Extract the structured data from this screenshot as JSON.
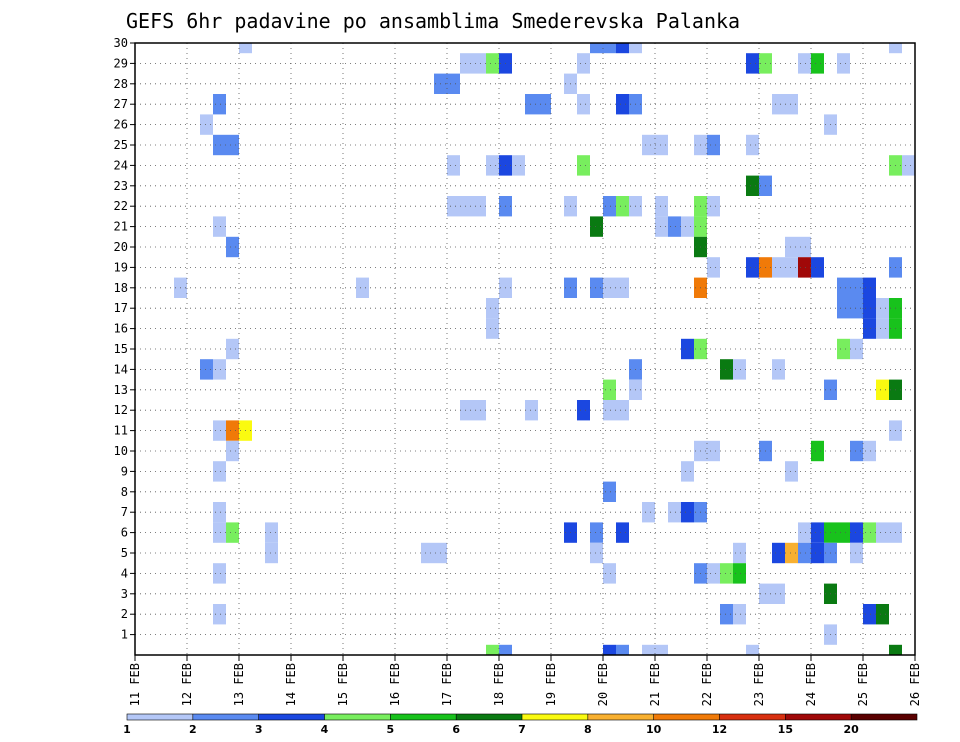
{
  "chart_data": {
    "type": "heatmap",
    "title": "GEFS 6hr padavine po ansamblima Smederevska Palanka",
    "x_tick_labels": [
      "11 FEB",
      "12 FEB",
      "13 FEB",
      "14 FEB",
      "15 FEB",
      "16 FEB",
      "17 FEB",
      "18 FEB",
      "19 FEB",
      "20 FEB",
      "21 FEB",
      "22 FEB",
      "23 FEB",
      "24 FEB",
      "25 FEB",
      "26 FEB"
    ],
    "y_tick_labels": [
      "1",
      "2",
      "3",
      "4",
      "5",
      "6",
      "7",
      "8",
      "9",
      "10",
      "11",
      "12",
      "13",
      "14",
      "15",
      "16",
      "17",
      "18",
      "19",
      "20",
      "21",
      "22",
      "23",
      "24",
      "25",
      "26",
      "27",
      "28",
      "29",
      "30"
    ],
    "x_range_days": [
      11,
      26
    ],
    "y_range_members": [
      0,
      30
    ],
    "grid": true,
    "colorbar": {
      "tick_labels": [
        "1",
        "2",
        "3",
        "4",
        "5",
        "6",
        "7",
        "8",
        "10",
        "12",
        "15",
        "20"
      ],
      "colors": [
        "#b4c7f7",
        "#5a8af0",
        "#1b47e0",
        "#78ee5e",
        "#18c21c",
        "#0a7a12",
        "#fafa10",
        "#f8b030",
        "#f07a08",
        "#d83010",
        "#a00808",
        "#5a0000"
      ]
    },
    "cells": [
      {
        "member": 30,
        "time": "13 FEB 06",
        "level": 1
      },
      {
        "member": 30,
        "time": "20 FEB 00",
        "level": 2
      },
      {
        "member": 30,
        "time": "20 FEB 06",
        "level": 2
      },
      {
        "member": 30,
        "time": "20 FEB 12",
        "level": 3
      },
      {
        "member": 30,
        "time": "20 FEB 18",
        "level": 1
      },
      {
        "member": 30,
        "time": "25 FEB 18",
        "level": 1
      },
      {
        "member": 29,
        "time": "17 FEB 12",
        "level": 1
      },
      {
        "member": 29,
        "time": "17 FEB 18",
        "level": 1
      },
      {
        "member": 29,
        "time": "18 FEB 00",
        "level": 4
      },
      {
        "member": 29,
        "time": "18 FEB 06",
        "level": 3
      },
      {
        "member": 29,
        "time": "19 FEB 18",
        "level": 1
      },
      {
        "member": 29,
        "time": "23 FEB 00",
        "level": 3
      },
      {
        "member": 29,
        "time": "23 FEB 06",
        "level": 4
      },
      {
        "member": 29,
        "time": "24 FEB 00",
        "level": 1
      },
      {
        "member": 29,
        "time": "24 FEB 06",
        "level": 5
      },
      {
        "member": 29,
        "time": "24 FEB 18",
        "level": 1
      },
      {
        "member": 28,
        "time": "17 FEB 00",
        "level": 2
      },
      {
        "member": 28,
        "time": "17 FEB 06",
        "level": 2
      },
      {
        "member": 28,
        "time": "19 FEB 12",
        "level": 1
      },
      {
        "member": 27,
        "time": "12 FEB 18",
        "level": 2
      },
      {
        "member": 27,
        "time": "18 FEB 18",
        "level": 2
      },
      {
        "member": 27,
        "time": "19 FEB 00",
        "level": 2
      },
      {
        "member": 27,
        "time": "19 FEB 18",
        "level": 1
      },
      {
        "member": 27,
        "time": "20 FEB 12",
        "level": 3
      },
      {
        "member": 27,
        "time": "20 FEB 18",
        "level": 2
      },
      {
        "member": 27,
        "time": "23 FEB 12",
        "level": 1
      },
      {
        "member": 27,
        "time": "23 FEB 18",
        "level": 1
      },
      {
        "member": 26,
        "time": "12 FEB 12",
        "level": 1
      },
      {
        "member": 26,
        "time": "24 FEB 12",
        "level": 1
      },
      {
        "member": 25,
        "time": "12 FEB 18",
        "level": 2
      },
      {
        "member": 25,
        "time": "13 FEB 00",
        "level": 2
      },
      {
        "member": 25,
        "time": "21 FEB 00",
        "level": 1
      },
      {
        "member": 25,
        "time": "21 FEB 06",
        "level": 1
      },
      {
        "member": 25,
        "time": "22 FEB 00",
        "level": 1
      },
      {
        "member": 25,
        "time": "22 FEB 06",
        "level": 2
      },
      {
        "member": 25,
        "time": "23 FEB 00",
        "level": 1
      },
      {
        "member": 24,
        "time": "17 FEB 06",
        "level": 1
      },
      {
        "member": 24,
        "time": "18 FEB 00",
        "level": 1
      },
      {
        "member": 24,
        "time": "18 FEB 06",
        "level": 3
      },
      {
        "member": 24,
        "time": "18 FEB 12",
        "level": 1
      },
      {
        "member": 24,
        "time": "19 FEB 18",
        "level": 4
      },
      {
        "member": 24,
        "time": "25 FEB 18",
        "level": 4
      },
      {
        "member": 24,
        "time": "26 FEB 00",
        "level": 1
      },
      {
        "member": 23,
        "time": "23 FEB 00",
        "level": 6
      },
      {
        "member": 23,
        "time": "23 FEB 06",
        "level": 2
      },
      {
        "member": 22,
        "time": "17 FEB 06",
        "level": 1
      },
      {
        "member": 22,
        "time": "17 FEB 12",
        "level": 1
      },
      {
        "member": 22,
        "time": "17 FEB 18",
        "level": 1
      },
      {
        "member": 22,
        "time": "18 FEB 06",
        "level": 2
      },
      {
        "member": 22,
        "time": "19 FEB 12",
        "level": 1
      },
      {
        "member": 22,
        "time": "20 FEB 06",
        "level": 2
      },
      {
        "member": 22,
        "time": "20 FEB 12",
        "level": 4
      },
      {
        "member": 22,
        "time": "20 FEB 18",
        "level": 1
      },
      {
        "member": 22,
        "time": "21 FEB 06",
        "level": 1
      },
      {
        "member": 22,
        "time": "22 FEB 00",
        "level": 4
      },
      {
        "member": 22,
        "time": "22 FEB 06",
        "level": 1
      },
      {
        "member": 21,
        "time": "12 FEB 18",
        "level": 1
      },
      {
        "member": 21,
        "time": "20 FEB 00",
        "level": 6
      },
      {
        "member": 21,
        "time": "21 FEB 06",
        "level": 1
      },
      {
        "member": 21,
        "time": "21 FEB 12",
        "level": 2
      },
      {
        "member": 21,
        "time": "21 FEB 18",
        "level": 1
      },
      {
        "member": 21,
        "time": "22 FEB 00",
        "level": 4
      },
      {
        "member": 20,
        "time": "13 FEB 00",
        "level": 2
      },
      {
        "member": 20,
        "time": "22 FEB 00",
        "level": 6
      },
      {
        "member": 20,
        "time": "23 FEB 18",
        "level": 1
      },
      {
        "member": 20,
        "time": "24 FEB 00",
        "level": 1
      },
      {
        "member": 19,
        "time": "22 FEB 06",
        "level": 1
      },
      {
        "member": 19,
        "time": "23 FEB 00",
        "level": 3
      },
      {
        "member": 19,
        "time": "23 FEB 06",
        "level": 9
      },
      {
        "member": 19,
        "time": "23 FEB 12",
        "level": 1
      },
      {
        "member": 19,
        "time": "23 FEB 18",
        "level": 1
      },
      {
        "member": 19,
        "time": "24 FEB 00",
        "level": 11
      },
      {
        "member": 19,
        "time": "24 FEB 06",
        "level": 3
      },
      {
        "member": 19,
        "time": "25 FEB 18",
        "level": 2
      },
      {
        "member": 18,
        "time": "12 FEB 00",
        "level": 1
      },
      {
        "member": 18,
        "time": "15 FEB 12",
        "level": 1
      },
      {
        "member": 18,
        "time": "18 FEB 06",
        "level": 1
      },
      {
        "member": 18,
        "time": "19 FEB 12",
        "level": 2
      },
      {
        "member": 18,
        "time": "20 FEB 00",
        "level": 2
      },
      {
        "member": 18,
        "time": "20 FEB 06",
        "level": 1
      },
      {
        "member": 18,
        "time": "20 FEB 12",
        "level": 1
      },
      {
        "member": 18,
        "time": "22 FEB 00",
        "level": 9
      },
      {
        "member": 18,
        "time": "24 FEB 18",
        "level": 2
      },
      {
        "member": 18,
        "time": "25 FEB 00",
        "level": 2
      },
      {
        "member": 18,
        "time": "25 FEB 06",
        "level": 3
      },
      {
        "member": 17,
        "time": "18 FEB 00",
        "level": 1
      },
      {
        "member": 17,
        "time": "24 FEB 18",
        "level": 2
      },
      {
        "member": 17,
        "time": "25 FEB 00",
        "level": 2
      },
      {
        "member": 17,
        "time": "25 FEB 06",
        "level": 3
      },
      {
        "member": 17,
        "time": "25 FEB 12",
        "level": 1
      },
      {
        "member": 17,
        "time": "25 FEB 18",
        "level": 5
      },
      {
        "member": 16,
        "time": "18 FEB 00",
        "level": 1
      },
      {
        "member": 16,
        "time": "25 FEB 06",
        "level": 3
      },
      {
        "member": 16,
        "time": "25 FEB 12",
        "level": 1
      },
      {
        "member": 16,
        "time": "25 FEB 18",
        "level": 5
      },
      {
        "member": 15,
        "time": "13 FEB 00",
        "level": 1
      },
      {
        "member": 15,
        "time": "21 FEB 18",
        "level": 3
      },
      {
        "member": 15,
        "time": "22 FEB 00",
        "level": 4
      },
      {
        "member": 15,
        "time": "24 FEB 18",
        "level": 4
      },
      {
        "member": 15,
        "time": "25 FEB 00",
        "level": 1
      },
      {
        "member": 14,
        "time": "12 FEB 12",
        "level": 2
      },
      {
        "member": 14,
        "time": "12 FEB 18",
        "level": 1
      },
      {
        "member": 14,
        "time": "20 FEB 18",
        "level": 2
      },
      {
        "member": 14,
        "time": "22 FEB 12",
        "level": 6
      },
      {
        "member": 14,
        "time": "22 FEB 18",
        "level": 1
      },
      {
        "member": 14,
        "time": "23 FEB 12",
        "level": 1
      },
      {
        "member": 13,
        "time": "20 FEB 06",
        "level": 4
      },
      {
        "member": 13,
        "time": "20 FEB 18",
        "level": 1
      },
      {
        "member": 13,
        "time": "24 FEB 12",
        "level": 2
      },
      {
        "member": 13,
        "time": "25 FEB 12",
        "level": 7
      },
      {
        "member": 13,
        "time": "25 FEB 18",
        "level": 6
      },
      {
        "member": 12,
        "time": "17 FEB 12",
        "level": 1
      },
      {
        "member": 12,
        "time": "17 FEB 18",
        "level": 1
      },
      {
        "member": 12,
        "time": "18 FEB 18",
        "level": 1
      },
      {
        "member": 12,
        "time": "19 FEB 18",
        "level": 3
      },
      {
        "member": 12,
        "time": "20 FEB 06",
        "level": 1
      },
      {
        "member": 12,
        "time": "20 FEB 12",
        "level": 1
      },
      {
        "member": 11,
        "time": "12 FEB 18",
        "level": 1
      },
      {
        "member": 11,
        "time": "13 FEB 00",
        "level": 9
      },
      {
        "member": 11,
        "time": "13 FEB 06",
        "level": 7
      },
      {
        "member": 11,
        "time": "25 FEB 18",
        "level": 1
      },
      {
        "member": 10,
        "time": "13 FEB 00",
        "level": 1
      },
      {
        "member": 10,
        "time": "22 FEB 00",
        "level": 1
      },
      {
        "member": 10,
        "time": "22 FEB 06",
        "level": 1
      },
      {
        "member": 10,
        "time": "23 FEB 06",
        "level": 2
      },
      {
        "member": 10,
        "time": "24 FEB 06",
        "level": 5
      },
      {
        "member": 10,
        "time": "25 FEB 00",
        "level": 2
      },
      {
        "member": 10,
        "time": "25 FEB 06",
        "level": 1
      },
      {
        "member": 9,
        "time": "12 FEB 18",
        "level": 1
      },
      {
        "member": 9,
        "time": "21 FEB 18",
        "level": 1
      },
      {
        "member": 9,
        "time": "23 FEB 18",
        "level": 1
      },
      {
        "member": 8,
        "time": "20 FEB 06",
        "level": 2
      },
      {
        "member": 7,
        "time": "12 FEB 18",
        "level": 1
      },
      {
        "member": 7,
        "time": "21 FEB 00",
        "level": 1
      },
      {
        "member": 7,
        "time": "21 FEB 12",
        "level": 1
      },
      {
        "member": 7,
        "time": "21 FEB 18",
        "level": 3
      },
      {
        "member": 7,
        "time": "22 FEB 00",
        "level": 2
      },
      {
        "member": 6,
        "time": "12 FEB 18",
        "level": 1
      },
      {
        "member": 6,
        "time": "13 FEB 00",
        "level": 4
      },
      {
        "member": 6,
        "time": "13 FEB 18",
        "level": 1
      },
      {
        "member": 6,
        "time": "19 FEB 12",
        "level": 3
      },
      {
        "member": 6,
        "time": "20 FEB 00",
        "level": 2
      },
      {
        "member": 6,
        "time": "20 FEB 12",
        "level": 3
      },
      {
        "member": 6,
        "time": "24 FEB 00",
        "level": 1
      },
      {
        "member": 6,
        "time": "24 FEB 06",
        "level": 3
      },
      {
        "member": 6,
        "time": "24 FEB 12",
        "level": 5
      },
      {
        "member": 6,
        "time": "24 FEB 18",
        "level": 5
      },
      {
        "member": 6,
        "time": "25 FEB 00",
        "level": 3
      },
      {
        "member": 6,
        "time": "25 FEB 06",
        "level": 4
      },
      {
        "member": 6,
        "time": "25 FEB 12",
        "level": 1
      },
      {
        "member": 6,
        "time": "25 FEB 18",
        "level": 1
      },
      {
        "member": 5,
        "time": "13 FEB 18",
        "level": 1
      },
      {
        "member": 5,
        "time": "16 FEB 18",
        "level": 1
      },
      {
        "member": 5,
        "time": "17 FEB 00",
        "level": 1
      },
      {
        "member": 5,
        "time": "20 FEB 00",
        "level": 1
      },
      {
        "member": 5,
        "time": "22 FEB 18",
        "level": 1
      },
      {
        "member": 5,
        "time": "23 FEB 12",
        "level": 3
      },
      {
        "member": 5,
        "time": "23 FEB 18",
        "level": 8
      },
      {
        "member": 5,
        "time": "24 FEB 00",
        "level": 2
      },
      {
        "member": 5,
        "time": "24 FEB 06",
        "level": 3
      },
      {
        "member": 5,
        "time": "24 FEB 12",
        "level": 2
      },
      {
        "member": 5,
        "time": "25 FEB 00",
        "level": 1
      },
      {
        "member": 4,
        "time": "12 FEB 18",
        "level": 1
      },
      {
        "member": 4,
        "time": "20 FEB 06",
        "level": 1
      },
      {
        "member": 4,
        "time": "22 FEB 00",
        "level": 2
      },
      {
        "member": 4,
        "time": "22 FEB 06",
        "level": 1
      },
      {
        "member": 4,
        "time": "22 FEB 12",
        "level": 4
      },
      {
        "member": 4,
        "time": "22 FEB 18",
        "level": 5
      },
      {
        "member": 3,
        "time": "23 FEB 06",
        "level": 1
      },
      {
        "member": 3,
        "time": "23 FEB 12",
        "level": 1
      },
      {
        "member": 3,
        "time": "24 FEB 12",
        "level": 6
      },
      {
        "member": 2,
        "time": "12 FEB 18",
        "level": 1
      },
      {
        "member": 2,
        "time": "22 FEB 12",
        "level": 2
      },
      {
        "member": 2,
        "time": "22 FEB 18",
        "level": 1
      },
      {
        "member": 2,
        "time": "25 FEB 06",
        "level": 3
      },
      {
        "member": 2,
        "time": "25 FEB 12",
        "level": 6
      },
      {
        "member": 1,
        "time": "24 FEB 12",
        "level": 1
      },
      {
        "member": 0,
        "time": "18 FEB 00",
        "level": 4
      },
      {
        "member": 0,
        "time": "18 FEB 06",
        "level": 2
      },
      {
        "member": 0,
        "time": "20 FEB 06",
        "level": 3
      },
      {
        "member": 0,
        "time": "20 FEB 12",
        "level": 2
      },
      {
        "member": 0,
        "time": "21 FEB 00",
        "level": 1
      },
      {
        "member": 0,
        "time": "21 FEB 06",
        "level": 1
      },
      {
        "member": 0,
        "time": "23 FEB 00",
        "level": 1
      },
      {
        "member": 0,
        "time": "25 FEB 18",
        "level": 6
      }
    ]
  }
}
